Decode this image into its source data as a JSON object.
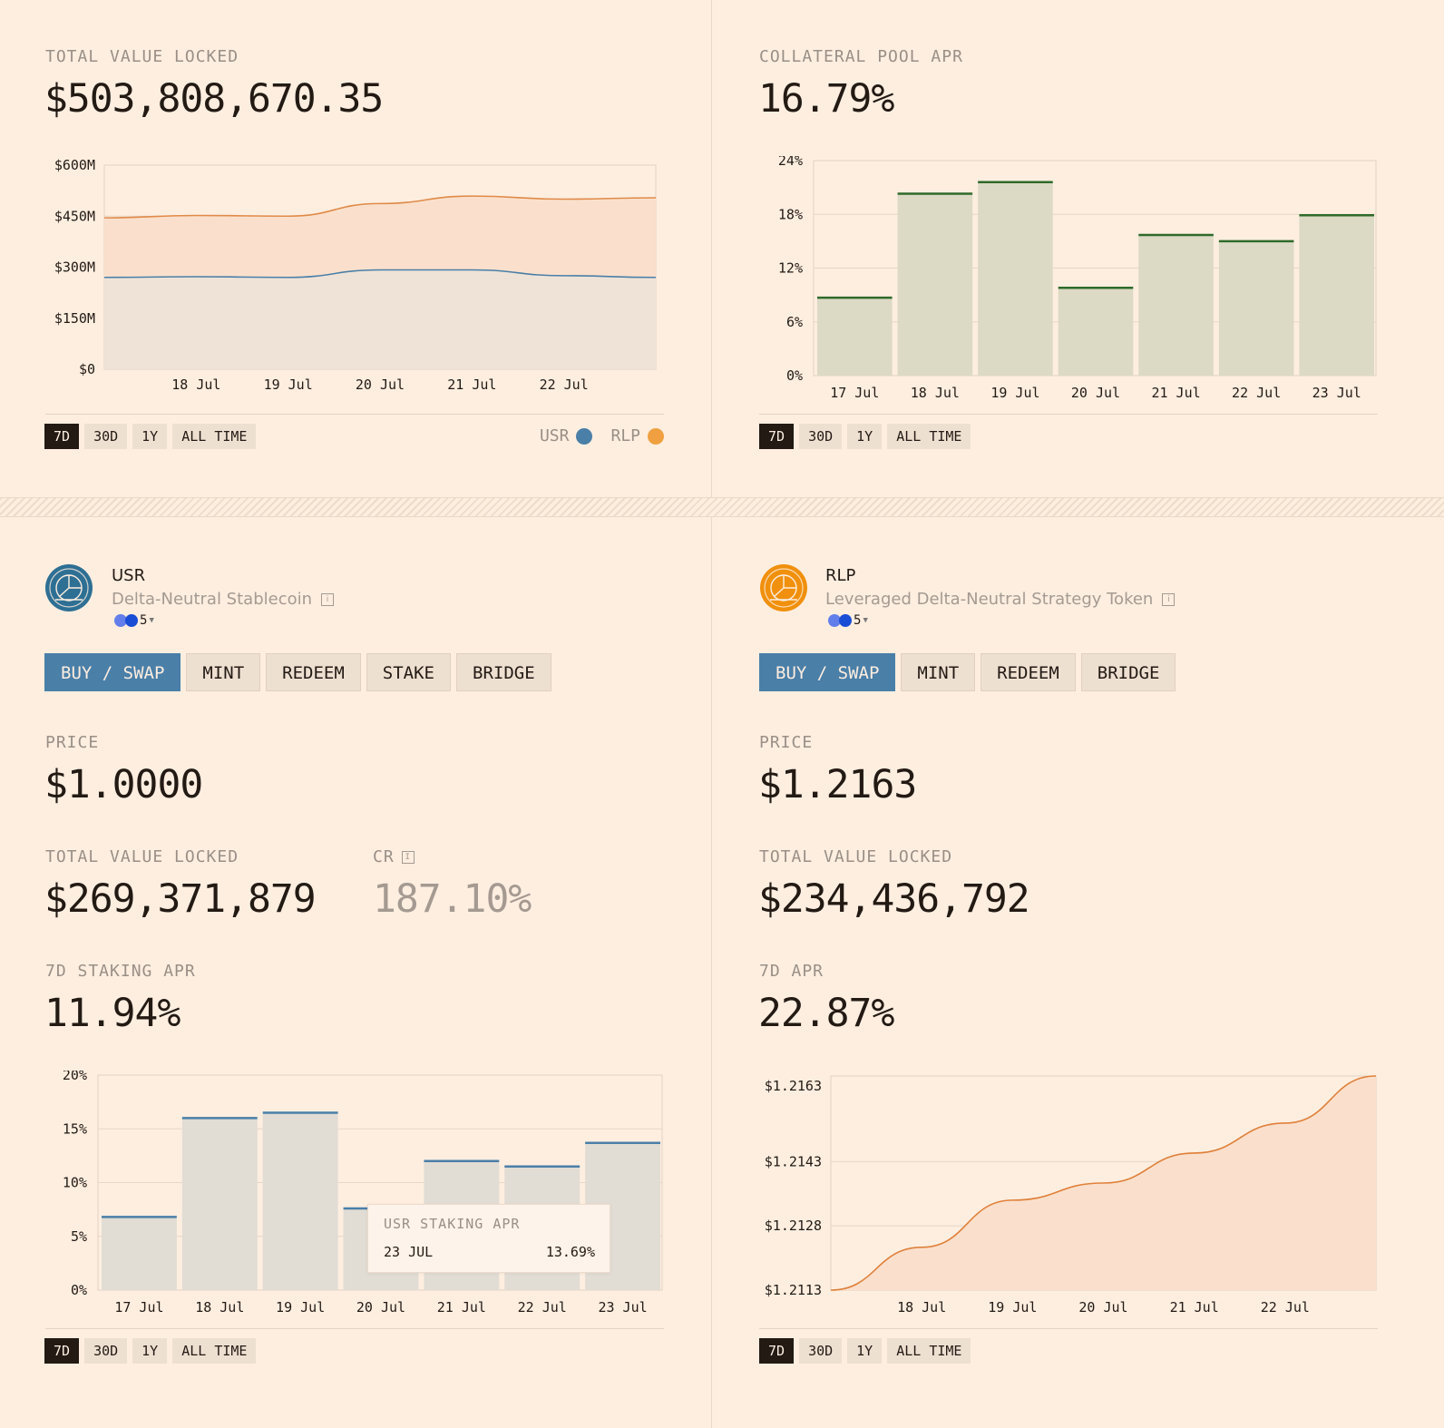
{
  "tvl_panel": {
    "label": "TOTAL VALUE LOCKED",
    "value": "$503,808,670.35",
    "ranges": [
      "7D",
      "30D",
      "1Y",
      "ALL TIME"
    ],
    "active_range": "7D",
    "legend": [
      {
        "name": "USR",
        "color": "#4a7fa8",
        "icon": "usr-token-icon"
      },
      {
        "name": "RLP",
        "color": "#f0a040",
        "icon": "rlp-token-icon"
      }
    ]
  },
  "apr_panel": {
    "label": "COLLATERAL POOL APR",
    "value": "16.79%",
    "ranges": [
      "7D",
      "30D",
      "1Y",
      "ALL TIME"
    ],
    "active_range": "7D"
  },
  "usr": {
    "name": "USR",
    "description": "Delta-Neutral Stablecoin",
    "chain_count": "5",
    "color": "#2e6f94",
    "actions": [
      "BUY / SWAP",
      "MINT",
      "REDEEM",
      "STAKE",
      "BRIDGE"
    ],
    "price_label": "PRICE",
    "price": "$1.0000",
    "tvl_label": "TOTAL VALUE LOCKED",
    "tvl": "$269,371,879",
    "cr_label": "CR",
    "cr": "187.10%",
    "apr_label": "7D STAKING APR",
    "apr": "11.94%",
    "ranges": [
      "7D",
      "30D",
      "1Y",
      "ALL TIME"
    ],
    "tooltip": {
      "title": "USR STAKING APR",
      "date": "23 JUL",
      "value": "13.69%"
    }
  },
  "rlp": {
    "name": "RLP",
    "description": "Leveraged Delta-Neutral Strategy Token",
    "chain_count": "5",
    "color": "#f0900c",
    "actions": [
      "BUY / SWAP",
      "MINT",
      "REDEEM",
      "BRIDGE"
    ],
    "price_label": "PRICE",
    "price": "$1.2163",
    "tvl_label": "TOTAL VALUE LOCKED",
    "tvl": "$234,436,792",
    "apr_label": "7D APR",
    "apr": "22.87%",
    "ranges": [
      "7D",
      "30D",
      "1Y",
      "ALL TIME"
    ]
  },
  "chart_data": [
    {
      "id": "tvl",
      "type": "area",
      "title": "Total Value Locked",
      "x": [
        "17 Jul",
        "18 Jul",
        "19 Jul",
        "20 Jul",
        "21 Jul",
        "22 Jul",
        "23 Jul"
      ],
      "x_ticks": [
        "18 Jul",
        "19 Jul",
        "20 Jul",
        "21 Jul",
        "22 Jul"
      ],
      "y_ticks": [
        "$0",
        "$150M",
        "$300M",
        "$450M",
        "$600M"
      ],
      "ylim": [
        0,
        600
      ],
      "stacked": true,
      "series": [
        {
          "name": "USR",
          "color": "#4a7fa8",
          "values": [
            270,
            272,
            270,
            292,
            292,
            275,
            270
          ]
        },
        {
          "name": "RLP",
          "color": "#e08a48",
          "values": [
            175,
            180,
            180,
            195,
            217,
            225,
            234
          ]
        }
      ]
    },
    {
      "id": "collateral_apr",
      "type": "bar",
      "title": "Collateral Pool APR",
      "categories": [
        "17 Jul",
        "18 Jul",
        "19 Jul",
        "20 Jul",
        "21 Jul",
        "22 Jul",
        "23 Jul"
      ],
      "values": [
        8.7,
        20.3,
        21.6,
        9.8,
        15.7,
        15.0,
        17.9
      ],
      "y_ticks": [
        "0%",
        "6%",
        "12%",
        "18%",
        "24%"
      ],
      "ylim": [
        0,
        24
      ],
      "fill": "#dcd9c4",
      "line": "#2f6a2a"
    },
    {
      "id": "usr_staking_apr",
      "type": "bar",
      "title": "USR Staking APR",
      "categories": [
        "17 Jul",
        "18 Jul",
        "19 Jul",
        "20 Jul",
        "21 Jul",
        "22 Jul",
        "23 Jul"
      ],
      "values": [
        6.8,
        16.0,
        16.5,
        7.6,
        12.0,
        11.5,
        13.69
      ],
      "y_ticks": [
        "0%",
        "5%",
        "10%",
        "15%",
        "20%"
      ],
      "ylim": [
        0,
        20
      ],
      "fill": "#e1dcd4",
      "line": "#4a7fa8"
    },
    {
      "id": "rlp_price",
      "type": "area",
      "title": "RLP Price",
      "x": [
        "17 Jul",
        "18 Jul",
        "19 Jul",
        "20 Jul",
        "21 Jul",
        "22 Jul",
        "23 Jul"
      ],
      "x_ticks": [
        "18 Jul",
        "19 Jul",
        "20 Jul",
        "21 Jul",
        "22 Jul"
      ],
      "y_ticks": [
        "$1.2113",
        "$1.2128",
        "$1.2143",
        "$1.2163"
      ],
      "values": [
        1.2113,
        1.2123,
        1.2134,
        1.2138,
        1.2145,
        1.2152,
        1.2163
      ],
      "color": "#e0803a",
      "fill": "#fae0cc"
    }
  ]
}
